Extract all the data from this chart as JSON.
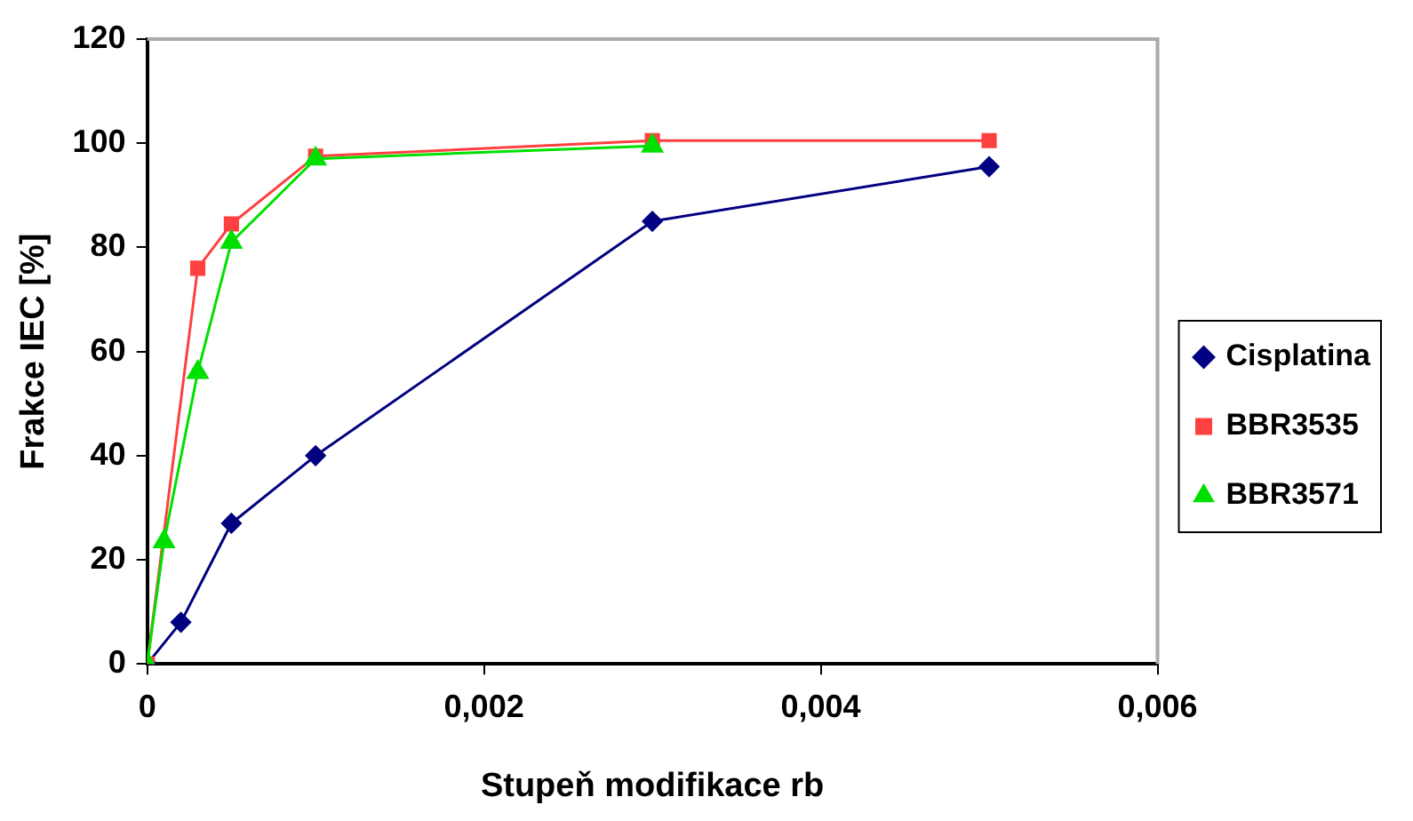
{
  "chart_data": {
    "type": "line",
    "xlabel": "Stupeň modifikace rb",
    "ylabel": "Frakce IEC [%]",
    "xlim": [
      0,
      0.006
    ],
    "xticks": [
      0,
      {
        "value": 0.002,
        "label": "0,002"
      },
      {
        "value": 0.004,
        "label": "0,004"
      },
      {
        "value": 0.006,
        "label": "0,006"
      }
    ],
    "ylim": [
      0,
      120
    ],
    "yticks": [
      0,
      20,
      40,
      60,
      80,
      100,
      120
    ],
    "grid": false,
    "legend": "right",
    "line_style": "solid",
    "series": [
      {
        "name": "Cisplatina",
        "color": "#000080",
        "marker": "diamond",
        "x": [
          0,
          0.0002,
          0.0005,
          0.001,
          0.003,
          0.005
        ],
        "values": [
          0,
          8,
          27,
          40,
          85,
          95.5
        ]
      },
      {
        "name": "BBR3535",
        "color": "#ff4040",
        "marker": "square",
        "x": [
          0,
          0.0003,
          0.0005,
          0.001,
          0.003,
          0.005
        ],
        "values": [
          0,
          76,
          84.5,
          97.5,
          100.5,
          100.5
        ]
      },
      {
        "name": "BBR3571",
        "color": "#00e000",
        "marker": "triangle",
        "x": [
          0,
          0.0001,
          0.0003,
          0.0005,
          0.001,
          0.003
        ],
        "values": [
          0,
          23.5,
          56,
          81,
          97,
          99.5
        ]
      }
    ]
  }
}
